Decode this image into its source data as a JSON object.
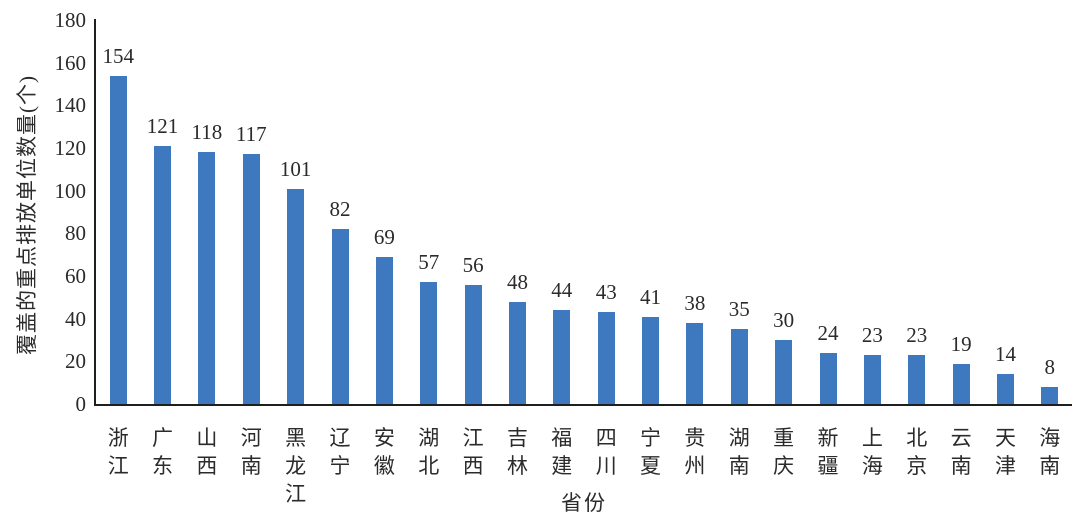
{
  "chart_data": {
    "type": "bar",
    "title": "",
    "categories": [
      "浙江",
      "广东",
      "山西",
      "河南",
      "黑龙江",
      "辽宁",
      "安徽",
      "湖北",
      "江西",
      "吉林",
      "福建",
      "四川",
      "宁夏",
      "贵州",
      "湖南",
      "重庆",
      "新疆",
      "上海",
      "北京",
      "云南",
      "天津",
      "海南"
    ],
    "values": [
      154,
      121,
      118,
      117,
      101,
      82,
      69,
      57,
      56,
      48,
      44,
      43,
      41,
      38,
      35,
      30,
      24,
      23,
      23,
      19,
      14,
      8
    ],
    "xlabel": "省份",
    "ylabel": "覆盖的重点排放单位数量(个)",
    "ylim": [
      0,
      180
    ],
    "yticks": [
      0,
      20,
      40,
      60,
      80,
      100,
      120,
      140,
      160,
      180
    ],
    "grid": false,
    "legend_position": "none",
    "value_labels_shown": true,
    "bar_color": "#3E79BF",
    "axis_color": "#1F1F1F",
    "text_color": "#2B2B2B",
    "background_color": "#FFFFFF"
  }
}
